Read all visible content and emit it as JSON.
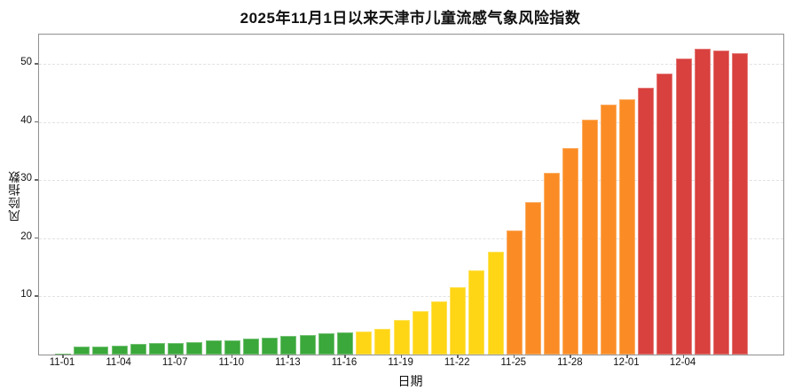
{
  "chart_data": {
    "type": "bar",
    "title": "2025年11月1日以来天津市儿童流感气象风险指数",
    "xlabel": "日期",
    "ylabel": "风险指数",
    "ylim": [
      0,
      55.1
    ],
    "yticks": [
      10,
      20,
      30,
      40,
      50
    ],
    "xtick_labels": [
      "11-01",
      "11-04",
      "11-07",
      "11-10",
      "11-13",
      "11-16",
      "11-19",
      "11-22",
      "11-25",
      "11-28",
      "12-01",
      "12-04"
    ],
    "grid": "horizontal-dashed",
    "legend": "none",
    "palette": {
      "green": "#3AA83A",
      "yellow": "#FFD615",
      "orange": "#FB8C25",
      "red": "#D8413E"
    },
    "bars": [
      {
        "date": "11-01",
        "value": 0.15,
        "level": "green"
      },
      {
        "date": "11-02",
        "value": 1.3,
        "level": "green"
      },
      {
        "date": "11-03",
        "value": 1.3,
        "level": "green"
      },
      {
        "date": "11-04",
        "value": 1.6,
        "level": "green"
      },
      {
        "date": "11-05",
        "value": 1.8,
        "level": "green"
      },
      {
        "date": "11-06",
        "value": 2.0,
        "level": "green"
      },
      {
        "date": "11-07",
        "value": 2.0,
        "level": "green"
      },
      {
        "date": "11-08",
        "value": 2.2,
        "level": "green"
      },
      {
        "date": "11-09",
        "value": 2.4,
        "level": "green"
      },
      {
        "date": "11-10",
        "value": 2.5,
        "level": "green"
      },
      {
        "date": "11-11",
        "value": 2.7,
        "level": "green"
      },
      {
        "date": "11-12",
        "value": 2.9,
        "level": "green"
      },
      {
        "date": "11-13",
        "value": 3.2,
        "level": "green"
      },
      {
        "date": "11-14",
        "value": 3.4,
        "level": "green"
      },
      {
        "date": "11-15",
        "value": 3.6,
        "level": "green"
      },
      {
        "date": "11-16",
        "value": 3.8,
        "level": "green"
      },
      {
        "date": "11-17",
        "value": 4.0,
        "level": "yellow"
      },
      {
        "date": "11-18",
        "value": 4.5,
        "level": "yellow"
      },
      {
        "date": "11-19",
        "value": 6.0,
        "level": "yellow"
      },
      {
        "date": "11-20",
        "value": 7.5,
        "level": "yellow"
      },
      {
        "date": "11-21",
        "value": 9.1,
        "level": "yellow"
      },
      {
        "date": "11-22",
        "value": 11.6,
        "level": "yellow"
      },
      {
        "date": "11-23",
        "value": 14.5,
        "level": "yellow"
      },
      {
        "date": "11-24",
        "value": 17.7,
        "level": "yellow"
      },
      {
        "date": "11-25",
        "value": 21.3,
        "level": "orange"
      },
      {
        "date": "11-26",
        "value": 26.2,
        "level": "orange"
      },
      {
        "date": "11-27",
        "value": 31.3,
        "level": "orange"
      },
      {
        "date": "11-28",
        "value": 35.6,
        "level": "orange"
      },
      {
        "date": "11-29",
        "value": 40.5,
        "level": "orange"
      },
      {
        "date": "11-30",
        "value": 43.1,
        "level": "orange"
      },
      {
        "date": "12-01",
        "value": 44.0,
        "level": "orange"
      },
      {
        "date": "12-02",
        "value": 46.0,
        "level": "red"
      },
      {
        "date": "12-03",
        "value": 48.4,
        "level": "red"
      },
      {
        "date": "12-04",
        "value": 51.0,
        "level": "red"
      },
      {
        "date": "12-05",
        "value": 52.6,
        "level": "red"
      },
      {
        "date": "12-06",
        "value": 52.3,
        "level": "red"
      },
      {
        "date": "12-07",
        "value": 51.9,
        "level": "red"
      }
    ]
  }
}
